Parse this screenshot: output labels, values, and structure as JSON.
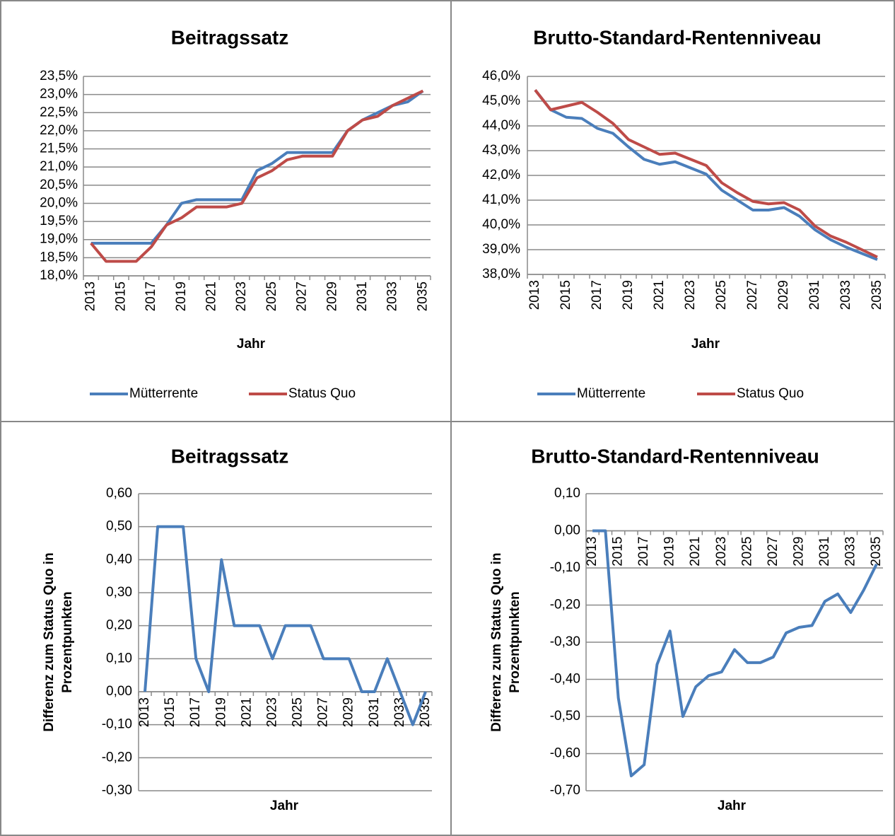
{
  "chart_data": [
    {
      "type": "line",
      "title": "Beitragssatz",
      "xlabel": "Jahr",
      "categories": [
        "2013",
        null,
        "2015",
        null,
        "2017",
        null,
        "2019",
        null,
        "2021",
        null,
        "2023",
        null,
        "2025",
        null,
        "2027",
        null,
        "2029",
        null,
        "2031",
        null,
        "2033",
        null,
        "2035"
      ],
      "series": [
        {
          "name": "Mütterrente",
          "color": "#4a7ebb",
          "values": [
            18.9,
            18.9,
            18.9,
            18.9,
            18.9,
            19.4,
            20.0,
            20.1,
            20.1,
            20.1,
            20.1,
            20.9,
            21.1,
            21.4,
            21.4,
            21.4,
            21.4,
            22.0,
            22.3,
            22.5,
            22.7,
            22.8,
            23.1
          ]
        },
        {
          "name": "Status Quo",
          "color": "#be4b48",
          "values": [
            18.9,
            18.4,
            18.4,
            18.4,
            18.8,
            19.4,
            19.6,
            19.9,
            19.9,
            19.9,
            20.0,
            20.7,
            20.9,
            21.2,
            21.3,
            21.3,
            21.3,
            22.0,
            22.3,
            22.4,
            22.7,
            22.9,
            23.1
          ]
        }
      ],
      "ylim": [
        18.0,
        23.5
      ],
      "yticks": [
        {
          "value": 18.0,
          "label": "18,0%"
        },
        {
          "value": 18.5,
          "label": "18,5%"
        },
        {
          "value": 19.0,
          "label": "19,0%"
        },
        {
          "value": 19.5,
          "label": "19,5%"
        },
        {
          "value": 20.0,
          "label": "20,0%"
        },
        {
          "value": 20.5,
          "label": "20,5%"
        },
        {
          "value": 21.0,
          "label": "21,0%"
        },
        {
          "value": 21.5,
          "label": "21,5%"
        },
        {
          "value": 22.0,
          "label": "22,0%"
        },
        {
          "value": 22.5,
          "label": "22,5%"
        },
        {
          "value": 23.0,
          "label": "23,0%"
        },
        {
          "value": 23.5,
          "label": "23,5%"
        }
      ],
      "grid": true,
      "legend": "bottom"
    },
    {
      "type": "line",
      "title": "Brutto-Standard-Rentenniveau",
      "xlabel": "Jahr",
      "categories": [
        "2013",
        null,
        "2015",
        null,
        "2017",
        null,
        "2019",
        null,
        "2021",
        null,
        "2023",
        null,
        "2025",
        null,
        "2027",
        null,
        "2029",
        null,
        "2031",
        null,
        "2033",
        null,
        "2035"
      ],
      "series": [
        {
          "name": "Mütterrente",
          "color": "#4a7ebb",
          "values": [
            45.45,
            44.65,
            44.35,
            44.3,
            43.9,
            43.7,
            43.15,
            42.65,
            42.45,
            42.55,
            42.3,
            42.05,
            41.4,
            41.0,
            40.6,
            40.6,
            40.7,
            40.35,
            39.8,
            39.4,
            39.1,
            38.85,
            38.6
          ]
        },
        {
          "name": "Status Quo",
          "color": "#be4b48",
          "values": [
            45.45,
            44.65,
            44.8,
            44.95,
            44.55,
            44.1,
            43.45,
            43.15,
            42.85,
            42.9,
            42.65,
            42.4,
            41.7,
            41.3,
            40.95,
            40.85,
            40.9,
            40.6,
            39.95,
            39.55,
            39.3,
            39.0,
            38.7
          ]
        }
      ],
      "ylim": [
        38.0,
        46.0
      ],
      "yticks": [
        {
          "value": 38.0,
          "label": "38,0%"
        },
        {
          "value": 39.0,
          "label": "39,0%"
        },
        {
          "value": 40.0,
          "label": "40,0%"
        },
        {
          "value": 41.0,
          "label": "41,0%"
        },
        {
          "value": 42.0,
          "label": "42,0%"
        },
        {
          "value": 43.0,
          "label": "43,0%"
        },
        {
          "value": 44.0,
          "label": "44,0%"
        },
        {
          "value": 45.0,
          "label": "45,0%"
        },
        {
          "value": 46.0,
          "label": "46,0%"
        }
      ],
      "grid": true,
      "legend": "bottom"
    },
    {
      "type": "line",
      "title": "Beitragssatz",
      "xlabel": "Jahr",
      "ylabel": [
        "Differenz zum Status Quo in",
        "Prozentpunkten"
      ],
      "categories": [
        "2013",
        null,
        "2015",
        null,
        "2017",
        null,
        "2019",
        null,
        "2021",
        null,
        "2023",
        null,
        "2025",
        null,
        "2027",
        null,
        "2029",
        null,
        "2031",
        null,
        "2033",
        null,
        "2035"
      ],
      "series": [
        {
          "color": "#4a7ebb",
          "values": [
            0.0,
            0.5,
            0.5,
            0.5,
            0.1,
            0.0,
            0.4,
            0.2,
            0.2,
            0.2,
            0.1,
            0.2,
            0.2,
            0.2,
            0.1,
            0.1,
            0.1,
            0.0,
            0.0,
            0.1,
            0.0,
            -0.1,
            0.0
          ]
        }
      ],
      "ylim": [
        -0.3,
        0.6
      ],
      "yticks": [
        {
          "value": -0.3,
          "label": "-0,30"
        },
        {
          "value": -0.2,
          "label": "-0,20"
        },
        {
          "value": -0.1,
          "label": "-0,10"
        },
        {
          "value": 0.0,
          "label": "0,00"
        },
        {
          "value": 0.1,
          "label": "0,10"
        },
        {
          "value": 0.2,
          "label": "0,20"
        },
        {
          "value": 0.3,
          "label": "0,30"
        },
        {
          "value": 0.4,
          "label": "0,40"
        },
        {
          "value": 0.5,
          "label": "0,50"
        },
        {
          "value": 0.6,
          "label": "0,60"
        }
      ],
      "grid": true
    },
    {
      "type": "line",
      "title": "Brutto-Standard-Rentenniveau",
      "xlabel": "Jahr",
      "ylabel": [
        "Differenz zum Status Quo in",
        "Prozentpunkten"
      ],
      "categories": [
        "2013",
        null,
        "2015",
        null,
        "2017",
        null,
        "2019",
        null,
        "2021",
        null,
        "2023",
        null,
        "2025",
        null,
        "2027",
        null,
        "2029",
        null,
        "2031",
        null,
        "2033",
        null,
        "2035"
      ],
      "series": [
        {
          "color": "#4a7ebb",
          "values": [
            0.0,
            0.0,
            -0.45,
            -0.66,
            -0.63,
            -0.36,
            -0.27,
            -0.5,
            -0.42,
            -0.39,
            -0.38,
            -0.32,
            -0.355,
            -0.355,
            -0.34,
            -0.275,
            -0.26,
            -0.255,
            -0.19,
            -0.17,
            -0.22,
            -0.16,
            -0.09
          ]
        }
      ],
      "ylim": [
        -0.7,
        0.1
      ],
      "yticks": [
        {
          "value": -0.7,
          "label": "-0,70"
        },
        {
          "value": -0.6,
          "label": "-0,60"
        },
        {
          "value": -0.5,
          "label": "-0,50"
        },
        {
          "value": -0.4,
          "label": "-0,40"
        },
        {
          "value": -0.3,
          "label": "-0,30"
        },
        {
          "value": -0.2,
          "label": "-0,20"
        },
        {
          "value": -0.1,
          "label": "-0,10"
        },
        {
          "value": 0.0,
          "label": "0,00"
        },
        {
          "value": 0.1,
          "label": "0,10"
        }
      ],
      "grid": true
    }
  ]
}
